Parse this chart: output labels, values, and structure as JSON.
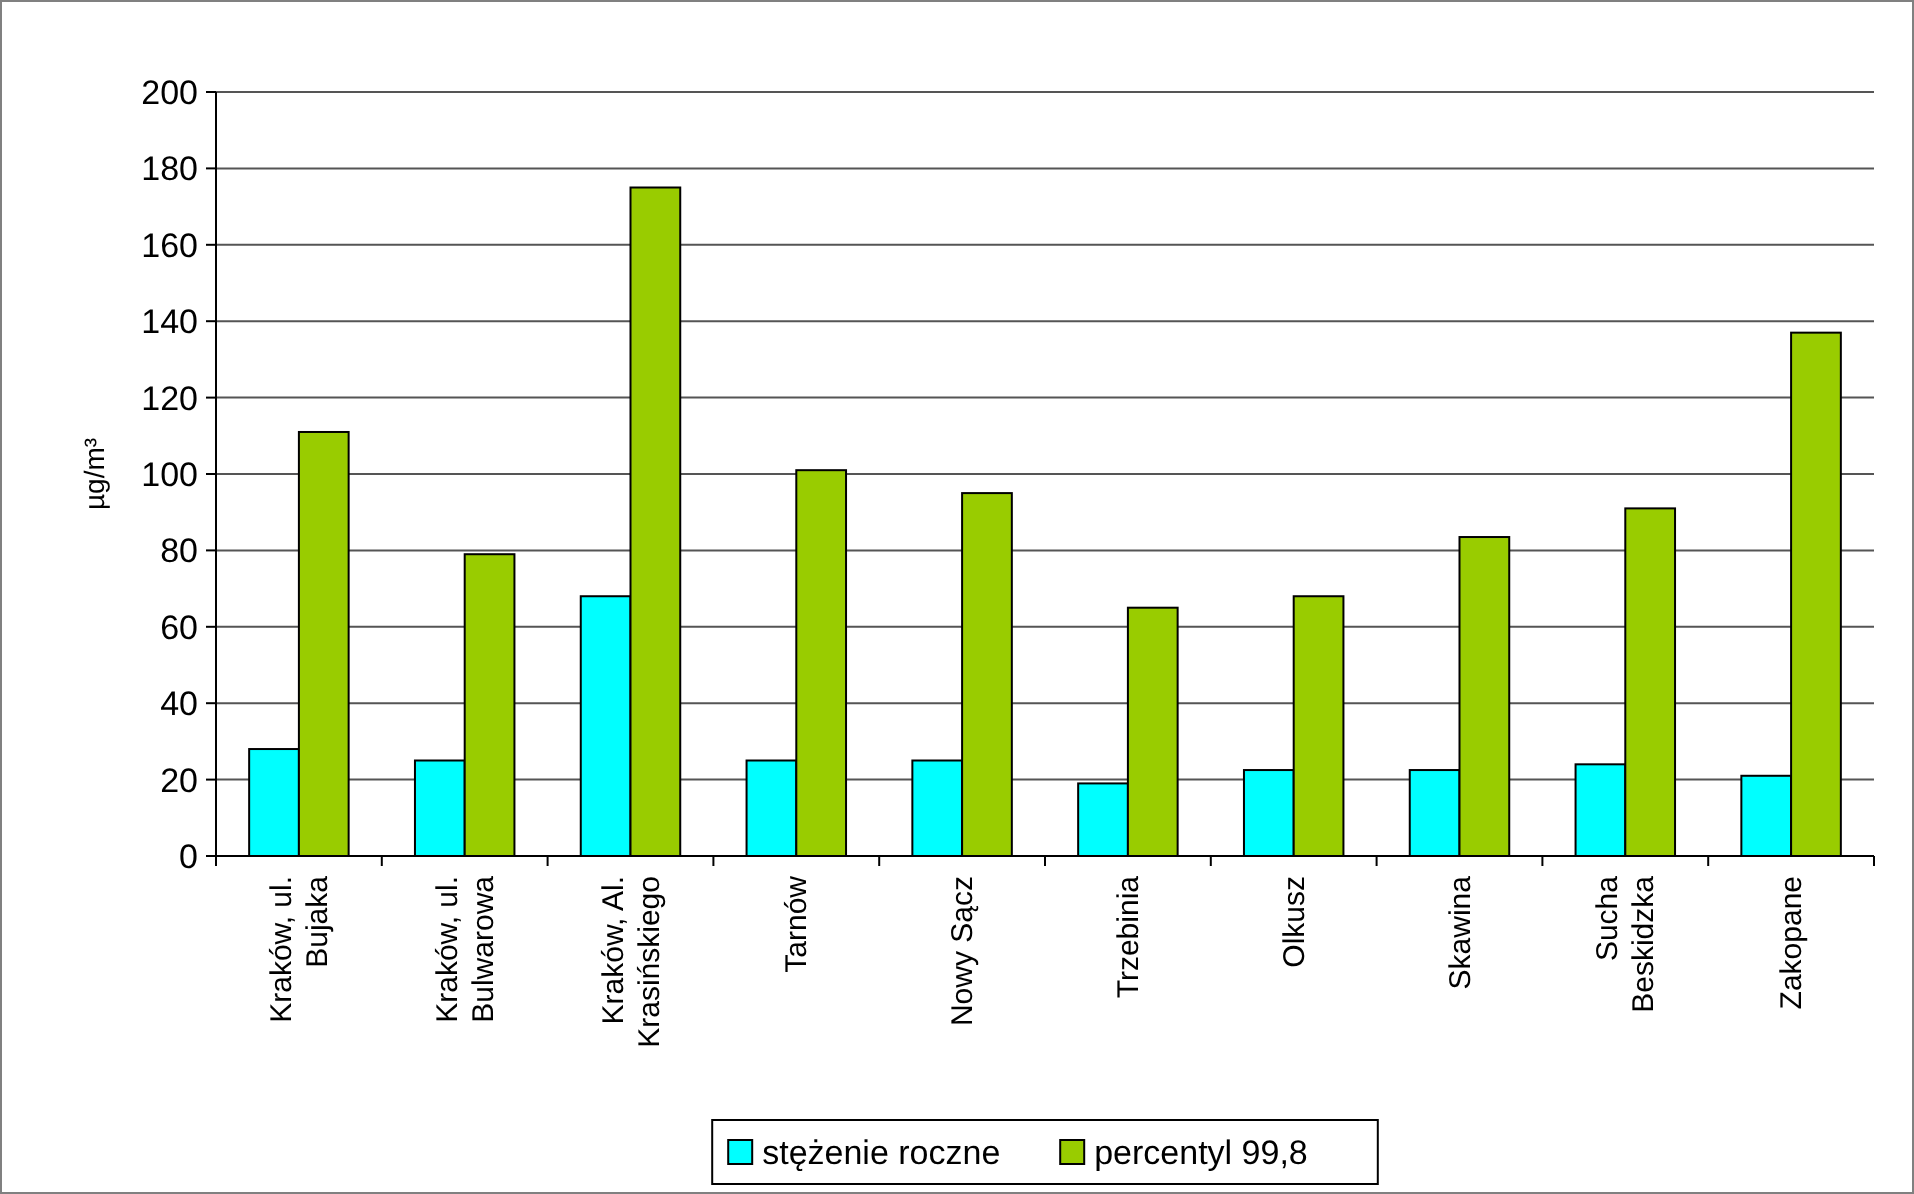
{
  "chart_data": {
    "type": "bar",
    "ylabel": "µg/m³",
    "categories": [
      "Kraków, ul.\nBujaka",
      "Kraków, ul.\nBulwarowa",
      "Kraków, Al.\nKrasińskiego",
      "Tarnów",
      "Nowy Sącz",
      "Trzebinia",
      "Olkusz",
      "Skawina",
      "Sucha\nBeskidzka",
      "Zakopane"
    ],
    "series": [
      {
        "name": "stężenie roczne",
        "color": "#00ffff",
        "values": [
          28,
          25,
          68,
          25,
          25,
          19,
          22.5,
          22.5,
          24,
          21
        ]
      },
      {
        "name": "percentyl 99,8",
        "color": "#99cc00",
        "values": [
          111,
          79,
          175,
          101,
          95,
          65,
          68,
          83.5,
          91,
          137
        ]
      }
    ],
    "ylim": [
      0,
      200
    ],
    "yticks": [
      0,
      20,
      40,
      60,
      80,
      100,
      120,
      140,
      160,
      180,
      200
    ],
    "grid": "y",
    "legend": "bottom"
  }
}
